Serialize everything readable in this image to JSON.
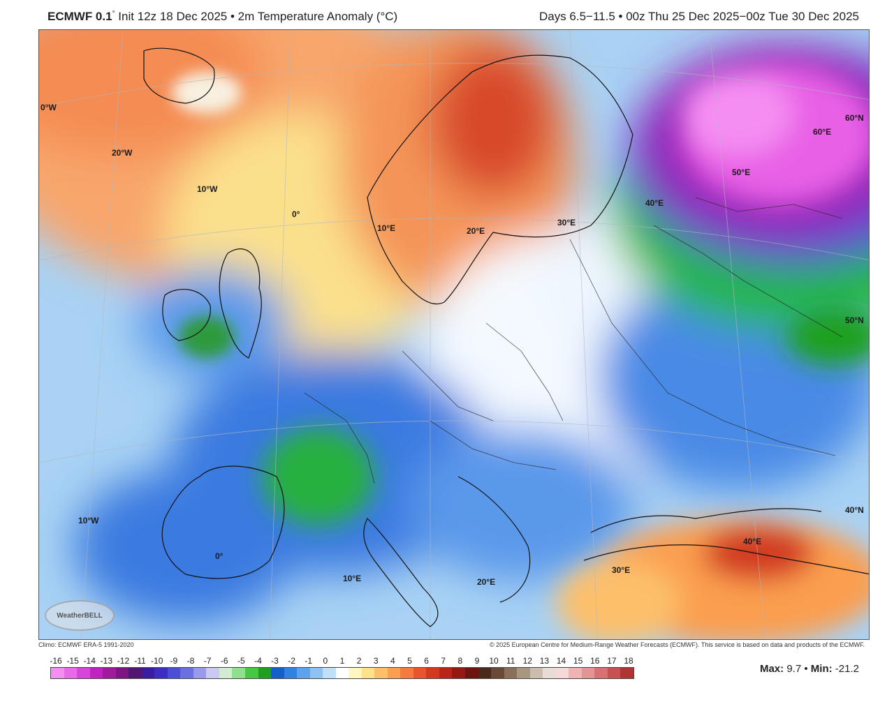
{
  "header": {
    "model": "ECMWF 0.1",
    "model_degree": "°",
    "init": "Init 12z 18 Dec 2025",
    "sep1": "•",
    "field": "2m Temperature Anomaly (°C)",
    "period": "Days 6.5−11.5 • 00z Thu 25 Dec 2025−00z Tue 30 Dec 2025"
  },
  "map": {
    "labels": [
      {
        "id": "lon-0w-top",
        "text": "0°W"
      },
      {
        "id": "lon-20w",
        "text": "20°W"
      },
      {
        "id": "lon-10w-top",
        "text": "10°W"
      },
      {
        "id": "lon-0-top",
        "text": "0°"
      },
      {
        "id": "lon-10e-top",
        "text": "10°E"
      },
      {
        "id": "lon-20e-top",
        "text": "20°E"
      },
      {
        "id": "lon-30e-top",
        "text": "30°E"
      },
      {
        "id": "lon-40e-top",
        "text": "40°E"
      },
      {
        "id": "lon-50e",
        "text": "50°E"
      },
      {
        "id": "lon-60e",
        "text": "60°E"
      },
      {
        "id": "lat-60n",
        "text": "60°N"
      },
      {
        "id": "lat-50n",
        "text": "50°N"
      },
      {
        "id": "lat-40n",
        "text": "40°N"
      },
      {
        "id": "lon-10w-bot",
        "text": "10°W"
      },
      {
        "id": "lon-0-bot",
        "text": "0°"
      },
      {
        "id": "lon-10e-bot",
        "text": "10°E"
      },
      {
        "id": "lon-20e-bot",
        "text": "20°E"
      },
      {
        "id": "lon-30e-bot",
        "text": "30°E"
      },
      {
        "id": "lon-40e-bot",
        "text": "40°E"
      }
    ],
    "logo": "WeatherBELL"
  },
  "credits": {
    "left": "Climo: ECMWF ERA-5 1991-2020",
    "right": "© 2025 European Centre for Medium-Range Weather Forecasts (ECMWF). This service is based on data and products of the ECMWF."
  },
  "colorbar": {
    "ticks": [
      "-16",
      "-15",
      "-14",
      "-13",
      "-12",
      "-11",
      "-10",
      "-9",
      "-8",
      "-7",
      "-6",
      "-5",
      "-4",
      "-3",
      "-2",
      "-1",
      "0",
      "1",
      "2",
      "3",
      "4",
      "5",
      "6",
      "7",
      "8",
      "9",
      "10",
      "11",
      "12",
      "13",
      "14",
      "15",
      "16",
      "17",
      "18"
    ],
    "colors": [
      "#f48ef0",
      "#e86ae8",
      "#d844d8",
      "#c021c0",
      "#a01a9e",
      "#7d1682",
      "#531574",
      "#3a1ca0",
      "#3c2ec4",
      "#4a4fd8",
      "#6b6fe0",
      "#9a9aea",
      "#c9c9f4",
      "#d2ecd2",
      "#8ee08e",
      "#45c945",
      "#1ea01e",
      "#1560c8",
      "#2f82e0",
      "#5ea2ee",
      "#8fc2f4",
      "#c0e0fa",
      "#ffffff",
      "#fff6c0",
      "#fee28a",
      "#fdbf6a",
      "#fb9e50",
      "#f57a3e",
      "#e8552c",
      "#d23a20",
      "#b8241a",
      "#961812",
      "#6e1410",
      "#4a2a18",
      "#6a4a36",
      "#8a7058",
      "#a99580",
      "#cbbcae",
      "#e8ddd6",
      "#f5d8d8",
      "#eeb4b4",
      "#e49494",
      "#d87272",
      "#c85252",
      "#b03434"
    ],
    "max_label": "Max:",
    "max_value": "9.7",
    "sep": "•",
    "min_label": "Min:",
    "min_value": "-21.2"
  }
}
